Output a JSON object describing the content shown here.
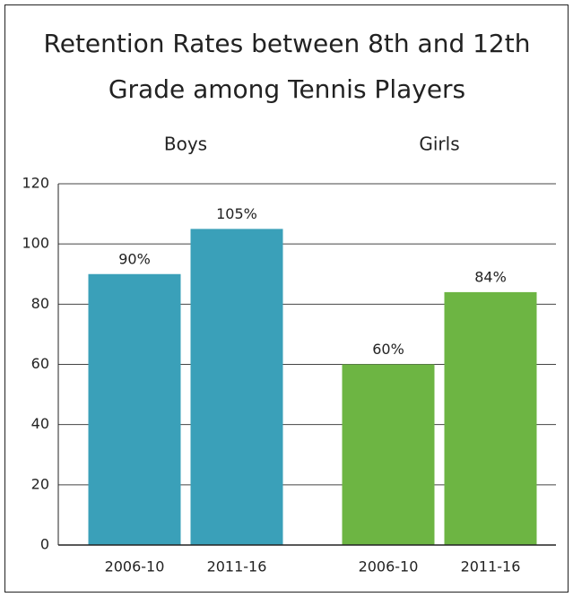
{
  "chart_data": {
    "type": "grouped_bar",
    "title": [
      "Retention Rates between 8th and 12th",
      "Grade among Tennis Players"
    ],
    "groups": [
      {
        "name": "Boys",
        "color": "#3aa0b9",
        "categories": [
          "2006-10",
          "2011-16"
        ],
        "values": [
          90,
          105
        ],
        "value_labels": [
          "90%",
          "105%"
        ]
      },
      {
        "name": "Girls",
        "color": "#6db543",
        "categories": [
          "2006-10",
          "2011-16"
        ],
        "values": [
          60,
          84
        ],
        "value_labels": [
          "60%",
          "84%"
        ]
      }
    ],
    "ylim": [
      0,
      120
    ],
    "yticks": [
      0,
      20,
      40,
      60,
      80,
      100,
      120
    ],
    "grid": true
  }
}
